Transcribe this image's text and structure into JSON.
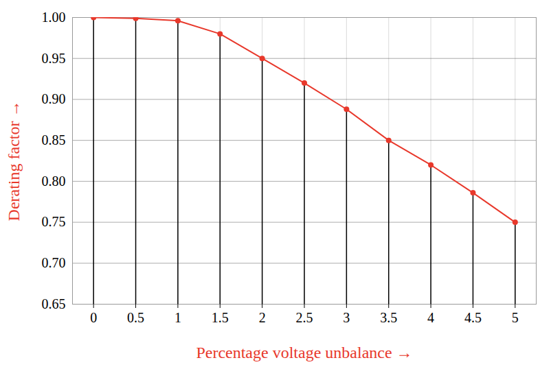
{
  "chart_data": {
    "type": "line",
    "x_label": "Percentage voltage unbalance",
    "y_label": "Derating factor",
    "x": [
      0,
      0.5,
      1,
      1.5,
      2,
      2.5,
      3,
      3.5,
      4,
      4.5,
      5
    ],
    "values": [
      1.0,
      0.999,
      0.996,
      0.98,
      0.95,
      0.92,
      0.888,
      0.85,
      0.82,
      0.786,
      0.75
    ],
    "color": "#e8382b",
    "marker": "circle",
    "xlim": [
      -0.25,
      5.25
    ],
    "xticks": [
      0,
      0.5,
      1,
      1.5,
      2,
      2.5,
      3,
      3.5,
      4,
      4.5,
      5
    ],
    "ylim": [
      0.65,
      1.0
    ],
    "yticks": [
      0.65,
      {
        "value": 0.7,
        "label": "0.70"
      },
      0.75,
      {
        "value": 0.8,
        "label": "0.80"
      },
      0.85,
      {
        "value": 0.9,
        "label": "0.90"
      },
      0.95,
      {
        "value": 1.0,
        "label": "1.00"
      }
    ],
    "grid": true
  }
}
